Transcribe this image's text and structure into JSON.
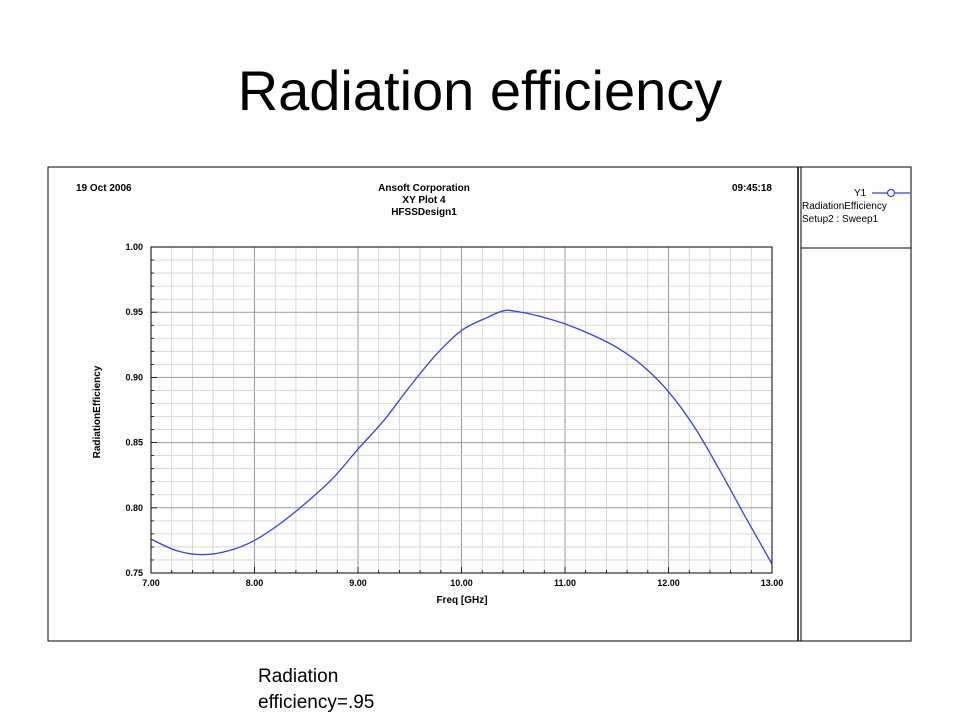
{
  "slide": {
    "title": "Radiation efficiency",
    "caption_line1": "Radiation",
    "caption_line2": "efficiency=.95"
  },
  "chart_data": {
    "type": "line",
    "header": {
      "date": "19 Oct 2006",
      "company": "Ansoft Corporation",
      "plot_name": "XY Plot 4",
      "design": "HFSSDesign1",
      "time": "09:45:18"
    },
    "xlabel": "Freq [GHz]",
    "ylabel": "RadiationEfficiency",
    "xlim": [
      7.0,
      13.0
    ],
    "ylim": [
      0.75,
      1.0
    ],
    "x_ticks": [
      "7.00",
      "8.00",
      "9.00",
      "10.00",
      "11.00",
      "12.00",
      "13.00"
    ],
    "y_ticks": [
      "1.00",
      "0.95",
      "0.90",
      "0.85",
      "0.80",
      "0.75"
    ],
    "grid": true,
    "legend": {
      "axis": "Y1",
      "entry_name": "RadiationEfficiency",
      "entry_setup": "Setup2 : Sweep1",
      "placement": "right-panel"
    },
    "line_color": "#3344dd",
    "series": [
      {
        "x": [
          7.0,
          7.25,
          7.5,
          7.75,
          8.0,
          8.25,
          8.5,
          8.75,
          9.0,
          9.25,
          9.5,
          9.75,
          10.0,
          10.25,
          10.4,
          10.5,
          10.75,
          11.0,
          11.25,
          11.5,
          11.75,
          12.0,
          12.25,
          12.5,
          12.75,
          13.0
        ],
        "values": [
          0.776,
          0.767,
          0.764,
          0.767,
          0.775,
          0.788,
          0.804,
          0.822,
          0.845,
          0.867,
          0.893,
          0.917,
          0.936,
          0.946,
          0.951,
          0.951,
          0.947,
          0.941,
          0.933,
          0.923,
          0.909,
          0.889,
          0.862,
          0.828,
          0.792,
          0.757
        ]
      }
    ]
  }
}
